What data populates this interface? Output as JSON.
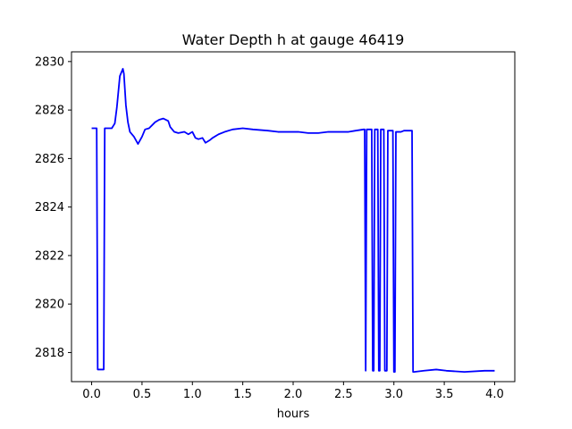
{
  "chart_data": {
    "type": "line",
    "title": "Water Depth h at gauge 46419",
    "xlabel": "hours",
    "ylabel": "",
    "xlim": [
      -0.2,
      4.2
    ],
    "ylim": [
      2816.8,
      2830.4
    ],
    "xticks": [
      0.0,
      0.5,
      1.0,
      1.5,
      2.0,
      2.5,
      3.0,
      3.5,
      4.0
    ],
    "xtick_labels": [
      "0.0",
      "0.5",
      "1.0",
      "1.5",
      "2.0",
      "2.5",
      "3.0",
      "3.5",
      "4.0"
    ],
    "yticks": [
      2818,
      2820,
      2822,
      2824,
      2826,
      2828,
      2830
    ],
    "ytick_labels": [
      "2818",
      "2820",
      "2822",
      "2824",
      "2826",
      "2828",
      "2830"
    ],
    "grid": false,
    "series": [
      {
        "color": "#0000ff",
        "x": [
          0.0,
          0.05,
          0.06,
          0.12,
          0.13,
          0.2,
          0.23,
          0.25,
          0.28,
          0.31,
          0.32,
          0.34,
          0.36,
          0.38,
          0.42,
          0.46,
          0.5,
          0.53,
          0.57,
          0.63,
          0.67,
          0.71,
          0.76,
          0.78,
          0.82,
          0.86,
          0.92,
          0.96,
          1.0,
          1.03,
          1.06,
          1.1,
          1.13,
          1.17,
          1.2,
          1.26,
          1.32,
          1.4,
          1.5,
          1.6,
          1.75,
          1.85,
          1.95,
          2.05,
          2.15,
          2.25,
          2.35,
          2.45,
          2.55,
          2.62,
          2.7,
          2.71,
          2.72,
          2.73,
          2.78,
          2.79,
          2.8,
          2.81,
          2.82,
          2.84,
          2.85,
          2.86,
          2.87,
          2.88,
          2.89,
          2.9,
          2.91,
          2.93,
          2.94,
          2.95,
          2.96,
          2.99,
          3.0,
          3.01,
          3.02,
          3.07,
          3.1,
          3.15,
          3.18,
          3.19,
          3.2,
          3.3,
          3.42,
          3.52,
          3.7,
          3.9,
          4.0
        ],
        "y": [
          2827.25,
          2827.25,
          2817.3,
          2817.3,
          2827.25,
          2827.25,
          2827.45,
          2828.1,
          2829.4,
          2829.7,
          2829.5,
          2828.2,
          2827.5,
          2827.1,
          2826.9,
          2826.6,
          2826.9,
          2827.2,
          2827.25,
          2827.5,
          2827.6,
          2827.65,
          2827.55,
          2827.3,
          2827.1,
          2827.05,
          2827.1,
          2827.0,
          2827.1,
          2826.85,
          2826.8,
          2826.85,
          2826.65,
          2826.75,
          2826.85,
          2827.0,
          2827.1,
          2827.2,
          2827.25,
          2827.2,
          2827.15,
          2827.1,
          2827.1,
          2827.1,
          2827.05,
          2827.05,
          2827.1,
          2827.1,
          2827.1,
          2827.15,
          2827.2,
          2827.2,
          2817.25,
          2827.2,
          2827.2,
          2817.25,
          2817.25,
          2827.2,
          2827.2,
          2827.2,
          2817.25,
          2817.25,
          2827.2,
          2827.2,
          2827.2,
          2827.2,
          2817.25,
          2817.25,
          2827.15,
          2827.15,
          2827.15,
          2827.15,
          2817.2,
          2817.2,
          2827.1,
          2827.1,
          2827.15,
          2827.15,
          2827.15,
          2817.2,
          2817.2,
          2817.25,
          2817.3,
          2817.25,
          2817.2,
          2817.25,
          2817.25
        ]
      }
    ]
  }
}
